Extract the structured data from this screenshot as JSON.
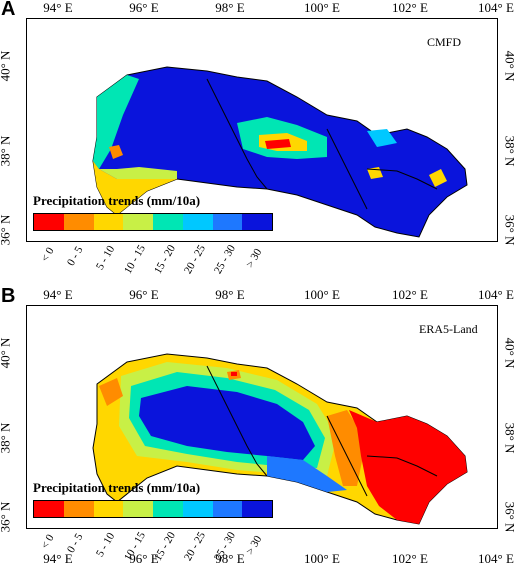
{
  "panels": [
    {
      "letter": "A",
      "dataset": "CMFD",
      "legend_title": "Precipitation trends (mm/10a)"
    },
    {
      "letter": "B",
      "dataset": "ERA5-Land",
      "legend_title": "Precipitation trends (mm/10a)"
    }
  ],
  "axes": {
    "x_ticks": [
      "94° E",
      "96° E",
      "98° E",
      "100° E",
      "102° E",
      "104° E"
    ],
    "y_ticks": [
      "40° N",
      "38° N",
      "36° N"
    ]
  },
  "legend": {
    "classes": [
      {
        "label": "< 0",
        "color": "#ff0000"
      },
      {
        "label": "0 - 5",
        "color": "#ff8c00"
      },
      {
        "label": "5 - 10",
        "color": "#ffd700"
      },
      {
        "label": "10 - 15",
        "color": "#c8f046"
      },
      {
        "label": "15 - 20",
        "color": "#00e6b4"
      },
      {
        "label": "20 - 25",
        "color": "#00c8ff"
      },
      {
        "label": "25 - 30",
        "color": "#1e78ff"
      },
      {
        "label": "> 30",
        "color": "#0a14dc"
      }
    ]
  },
  "colors": {
    "frame": "#000000",
    "background": "#ffffff"
  }
}
